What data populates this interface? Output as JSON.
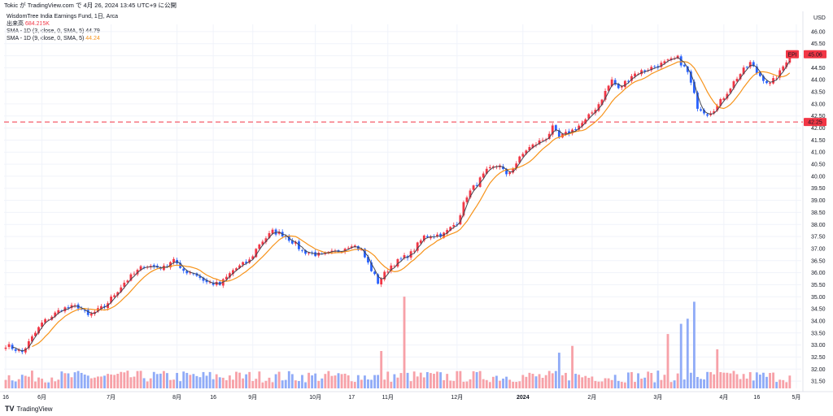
{
  "header": {
    "text": "Tokic が TradingView.com で 4月 26, 2024 13:45 UTC+9 に公開"
  },
  "legend": {
    "title": "WisdomTree India Earnings Fund, 1日, Arca",
    "volume_label": "出来高",
    "volume_value": "684.215K",
    "sma3_label": "SMA - 1D (3, close, 0, SMA, 5)",
    "sma3_value": "44.79",
    "sma9_label": "SMA - 1D (9, close, 0, SMA, 5)",
    "sma9_value": "44.24"
  },
  "footer": {
    "logo_text": "TradingView"
  },
  "colors": {
    "up": "#f23645",
    "down": "#2962ff",
    "vol_up": "#f7a1a8",
    "vol_down": "#90abf7",
    "sma3": "#434651",
    "sma9": "#f7931a",
    "grid": "#f0f3fa",
    "hline": "#f23645"
  },
  "chart_data": {
    "type": "candlestick",
    "currency": "USD",
    "y_ticks": [
      "31.50",
      "32.00",
      "32.50",
      "33.00",
      "33.50",
      "34.00",
      "34.50",
      "35.00",
      "35.50",
      "36.00",
      "36.50",
      "37.00",
      "37.50",
      "38.00",
      "38.50",
      "39.00",
      "39.50",
      "40.00",
      "40.50",
      "41.00",
      "41.50",
      "42.00",
      "42.50",
      "43.00",
      "43.50",
      "44.00",
      "44.50",
      "45.00",
      "45.50",
      "46.00"
    ],
    "ylim": [
      31.2,
      46.3
    ],
    "x_ticks": [
      {
        "label": "16",
        "i": 0
      },
      {
        "label": "6月",
        "i": 11
      },
      {
        "label": "7月",
        "i": 32
      },
      {
        "label": "8月",
        "i": 52
      },
      {
        "label": "16",
        "i": 63
      },
      {
        "label": "9月",
        "i": 75
      },
      {
        "label": "10月",
        "i": 94
      },
      {
        "label": "17",
        "i": 105
      },
      {
        "label": "11月",
        "i": 116
      },
      {
        "label": "12月",
        "i": 137
      },
      {
        "label": "2024",
        "i": 157
      },
      {
        "label": "2月",
        "i": 178
      },
      {
        "label": "3月",
        "i": 198
      },
      {
        "label": "4月",
        "i": 218
      },
      {
        "label": "16",
        "i": 228
      },
      {
        "label": "5月",
        "i": 240
      }
    ],
    "horizontal_line": {
      "value": 42.25,
      "label": "42.25"
    },
    "last_price": {
      "symbol": "EPI",
      "value": 45.06,
      "label": "45.06"
    },
    "anchors": [
      [
        0,
        33.0
      ],
      [
        5,
        32.7
      ],
      [
        11,
        33.9
      ],
      [
        17,
        34.5
      ],
      [
        22,
        34.6
      ],
      [
        25,
        34.2
      ],
      [
        30,
        34.6
      ],
      [
        36,
        35.6
      ],
      [
        42,
        36.3
      ],
      [
        48,
        36.2
      ],
      [
        51,
        36.6
      ],
      [
        53,
        36.1
      ],
      [
        57,
        36.0
      ],
      [
        61,
        35.6
      ],
      [
        65,
        35.5
      ],
      [
        69,
        36.1
      ],
      [
        74,
        36.5
      ],
      [
        77,
        37.2
      ],
      [
        81,
        37.7
      ],
      [
        84,
        37.6
      ],
      [
        87,
        37.3
      ],
      [
        90,
        36.9
      ],
      [
        96,
        36.7
      ],
      [
        101,
        36.9
      ],
      [
        105,
        37.2
      ],
      [
        108,
        36.9
      ],
      [
        113,
        35.6
      ],
      [
        117,
        36.3
      ],
      [
        123,
        36.8
      ],
      [
        127,
        37.5
      ],
      [
        133,
        37.6
      ],
      [
        137,
        38.1
      ],
      [
        140,
        39.2
      ],
      [
        146,
        40.2
      ],
      [
        150,
        40.5
      ],
      [
        152,
        40.0
      ],
      [
        158,
        41.1
      ],
      [
        164,
        41.6
      ],
      [
        166,
        42.0
      ],
      [
        168,
        41.6
      ],
      [
        172,
        41.9
      ],
      [
        176,
        42.3
      ],
      [
        180,
        43.0
      ],
      [
        184,
        44.0
      ],
      [
        186,
        43.6
      ],
      [
        190,
        44.2
      ],
      [
        194,
        44.4
      ],
      [
        198,
        44.6
      ],
      [
        204,
        44.9
      ],
      [
        207,
        44.3
      ],
      [
        210,
        42.9
      ],
      [
        213,
        42.6
      ],
      [
        216,
        42.9
      ],
      [
        218,
        43.3
      ],
      [
        222,
        44.1
      ],
      [
        226,
        44.7
      ],
      [
        228,
        44.3
      ],
      [
        232,
        43.8
      ],
      [
        235,
        44.3
      ],
      [
        238,
        45.06
      ]
    ],
    "volume_max_k": 5500,
    "series": [
      {
        "name": "出来高",
        "type": "volume"
      },
      {
        "name": "SMA (3)",
        "type": "line"
      },
      {
        "name": "SMA (9)",
        "type": "line"
      }
    ]
  }
}
